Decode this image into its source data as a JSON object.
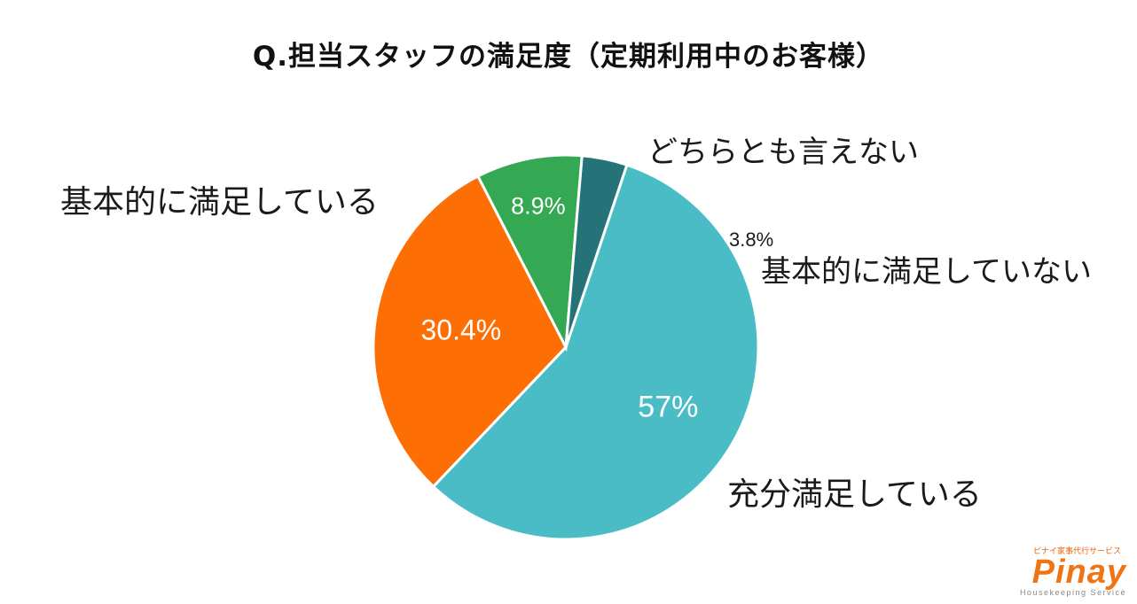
{
  "chart_data": {
    "type": "pie",
    "title": "Q.担当スタッフの満足度（定期利用中のお客様）",
    "slices": [
      {
        "label": "充分満足している",
        "value": 57,
        "display": "57%",
        "color": "#4abcc6"
      },
      {
        "label": "基本的に満足している",
        "value": 30.4,
        "display": "30.4%",
        "color": "#fd6e04"
      },
      {
        "label": "どちらとも言えない",
        "value": 8.9,
        "display": "8.9%",
        "color": "#35a853"
      },
      {
        "label": "基本的に満足していない",
        "value": 3.8,
        "display": "3.8%",
        "color": "#257379"
      }
    ]
  },
  "logo": {
    "tagline": "ピナイ家事代行サービス",
    "wordmark": "Pinay",
    "subtitle": "Housekeeping Service"
  }
}
